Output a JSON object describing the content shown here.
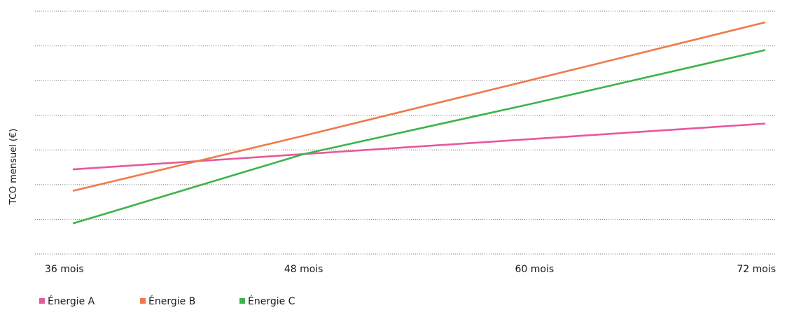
{
  "chart_data": {
    "type": "line",
    "title": "",
    "xlabel": "",
    "ylabel": "TCO mensuel (€)",
    "categories": [
      "36 mois",
      "48 mois",
      "60 mois",
      "72 mois"
    ],
    "x": [
      36,
      48,
      60,
      72
    ],
    "ylim": [
      0,
      7
    ],
    "y_tick_count": 8,
    "grid": true,
    "legend": "bottom-left",
    "series": [
      {
        "name": "Énergie A",
        "color": "#e8589b",
        "values": [
          2.44,
          2.88,
          3.32,
          3.76
        ]
      },
      {
        "name": "Énergie B",
        "color": "#ee7a4a",
        "values": [
          1.82,
          3.41,
          5.04,
          6.68
        ]
      },
      {
        "name": "Énergie C",
        "color": "#3cb44b",
        "values": [
          0.88,
          2.88,
          4.35,
          5.88
        ]
      }
    ]
  }
}
